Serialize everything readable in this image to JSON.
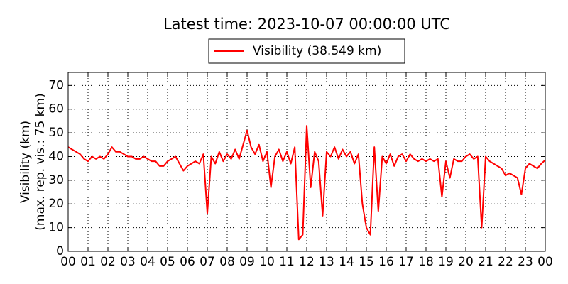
{
  "chart_data": {
    "type": "line",
    "title": "Latest time: 2023-10-07 00:00:00 UTC",
    "ylabel": [
      "Visibility (km)",
      "(max. rep. vis.: 75 km)"
    ],
    "x": [
      0,
      0.2,
      0.4,
      0.6,
      0.8,
      1,
      1.2,
      1.4,
      1.6,
      1.8,
      2,
      2.2,
      2.4,
      2.6,
      2.8,
      3,
      3.2,
      3.4,
      3.6,
      3.8,
      4,
      4.2,
      4.4,
      4.6,
      4.8,
      5,
      5.2,
      5.4,
      5.6,
      5.8,
      6,
      6.2,
      6.4,
      6.6,
      6.8,
      7,
      7.2,
      7.4,
      7.6,
      7.8,
      8,
      8.2,
      8.4,
      8.6,
      8.8,
      9,
      9.2,
      9.4,
      9.6,
      9.8,
      10,
      10.2,
      10.4,
      10.6,
      10.8,
      11,
      11.2,
      11.4,
      11.6,
      11.8,
      12,
      12.2,
      12.4,
      12.6,
      12.8,
      13,
      13.2,
      13.4,
      13.6,
      13.8,
      14,
      14.2,
      14.4,
      14.6,
      14.8,
      15,
      15.2,
      15.4,
      15.6,
      15.8,
      16,
      16.2,
      16.4,
      16.6,
      16.8,
      17,
      17.2,
      17.4,
      17.6,
      17.8,
      18,
      18.2,
      18.4,
      18.6,
      18.8,
      19,
      19.2,
      19.4,
      19.6,
      19.8,
      20,
      20.2,
      20.4,
      20.6,
      20.8,
      21,
      21.2,
      21.4,
      21.6,
      21.8,
      22,
      22.2,
      22.4,
      22.6,
      22.8,
      23,
      23.2,
      23.4,
      23.6,
      23.8,
      24
    ],
    "series": [
      {
        "name": "Visibility (38.549 km)",
        "color": "#ff0000",
        "values": [
          44,
          43,
          42,
          41,
          39,
          38,
          40,
          39,
          40,
          39,
          41,
          44,
          42,
          42,
          41,
          40,
          40,
          39,
          39,
          40,
          39,
          38,
          38,
          36,
          36,
          38,
          39,
          40,
          37,
          34,
          36,
          37,
          38,
          37,
          41,
          16,
          40,
          37,
          42,
          38,
          41,
          39,
          43,
          39,
          45,
          51,
          44,
          41,
          45,
          38,
          42,
          27,
          40,
          43,
          38,
          42,
          37,
          44,
          5,
          7,
          53,
          27,
          42,
          38,
          15,
          42,
          40,
          44,
          39,
          43,
          40,
          42,
          37,
          41,
          20,
          10,
          7,
          44,
          17,
          40,
          37,
          41,
          36,
          40,
          41,
          38,
          41,
          39,
          38,
          39,
          38,
          39,
          38,
          39,
          23,
          38,
          31,
          39,
          38,
          38,
          40,
          41,
          39,
          40,
          10,
          40,
          38,
          37,
          36,
          35,
          32,
          33,
          32,
          31,
          24,
          35,
          37,
          36,
          35,
          37,
          38.549
        ]
      }
    ],
    "xlim": [
      0,
      24
    ],
    "xticks": [
      {
        "value": 0,
        "label": "00"
      },
      {
        "value": 1,
        "label": "01"
      },
      {
        "value": 2,
        "label": "02"
      },
      {
        "value": 3,
        "label": "03"
      },
      {
        "value": 4,
        "label": "04"
      },
      {
        "value": 5,
        "label": "05"
      },
      {
        "value": 6,
        "label": "06"
      },
      {
        "value": 7,
        "label": "07"
      },
      {
        "value": 8,
        "label": "08"
      },
      {
        "value": 9,
        "label": "09"
      },
      {
        "value": 10,
        "label": "10"
      },
      {
        "value": 11,
        "label": "11"
      },
      {
        "value": 12,
        "label": "12"
      },
      {
        "value": 13,
        "label": "13"
      },
      {
        "value": 14,
        "label": "14"
      },
      {
        "value": 15,
        "label": "15"
      },
      {
        "value": 16,
        "label": "16"
      },
      {
        "value": 17,
        "label": "17"
      },
      {
        "value": 18,
        "label": "18"
      },
      {
        "value": 19,
        "label": "19"
      },
      {
        "value": 20,
        "label": "20"
      },
      {
        "value": 21,
        "label": "21"
      },
      {
        "value": 22,
        "label": "22"
      },
      {
        "value": 23,
        "label": "23"
      },
      {
        "value": 24,
        "label": "00"
      }
    ],
    "ylim": [
      0,
      75.5
    ],
    "yticks": [
      0,
      10,
      20,
      30,
      40,
      50,
      60,
      70
    ],
    "grid": true,
    "legend": "top"
  }
}
